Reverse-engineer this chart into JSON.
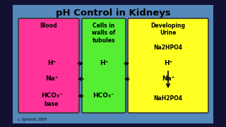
{
  "title": "pH Control in Kidneys",
  "bg_color": "#5588bb",
  "dark_border": "#111133",
  "box1_color": "#ff3399",
  "box2_color": "#55ee33",
  "box3_color": "#ffff22",
  "box1_label": "Blood",
  "box2_label": "Cells in\nwalls of\ntubules",
  "box3_label": "Developing\nUrine",
  "copyright": "c. Ophardt, 2005",
  "title_fontsize": 9.5,
  "label_fontsize": 5.5,
  "item_fontsize": 5.5
}
